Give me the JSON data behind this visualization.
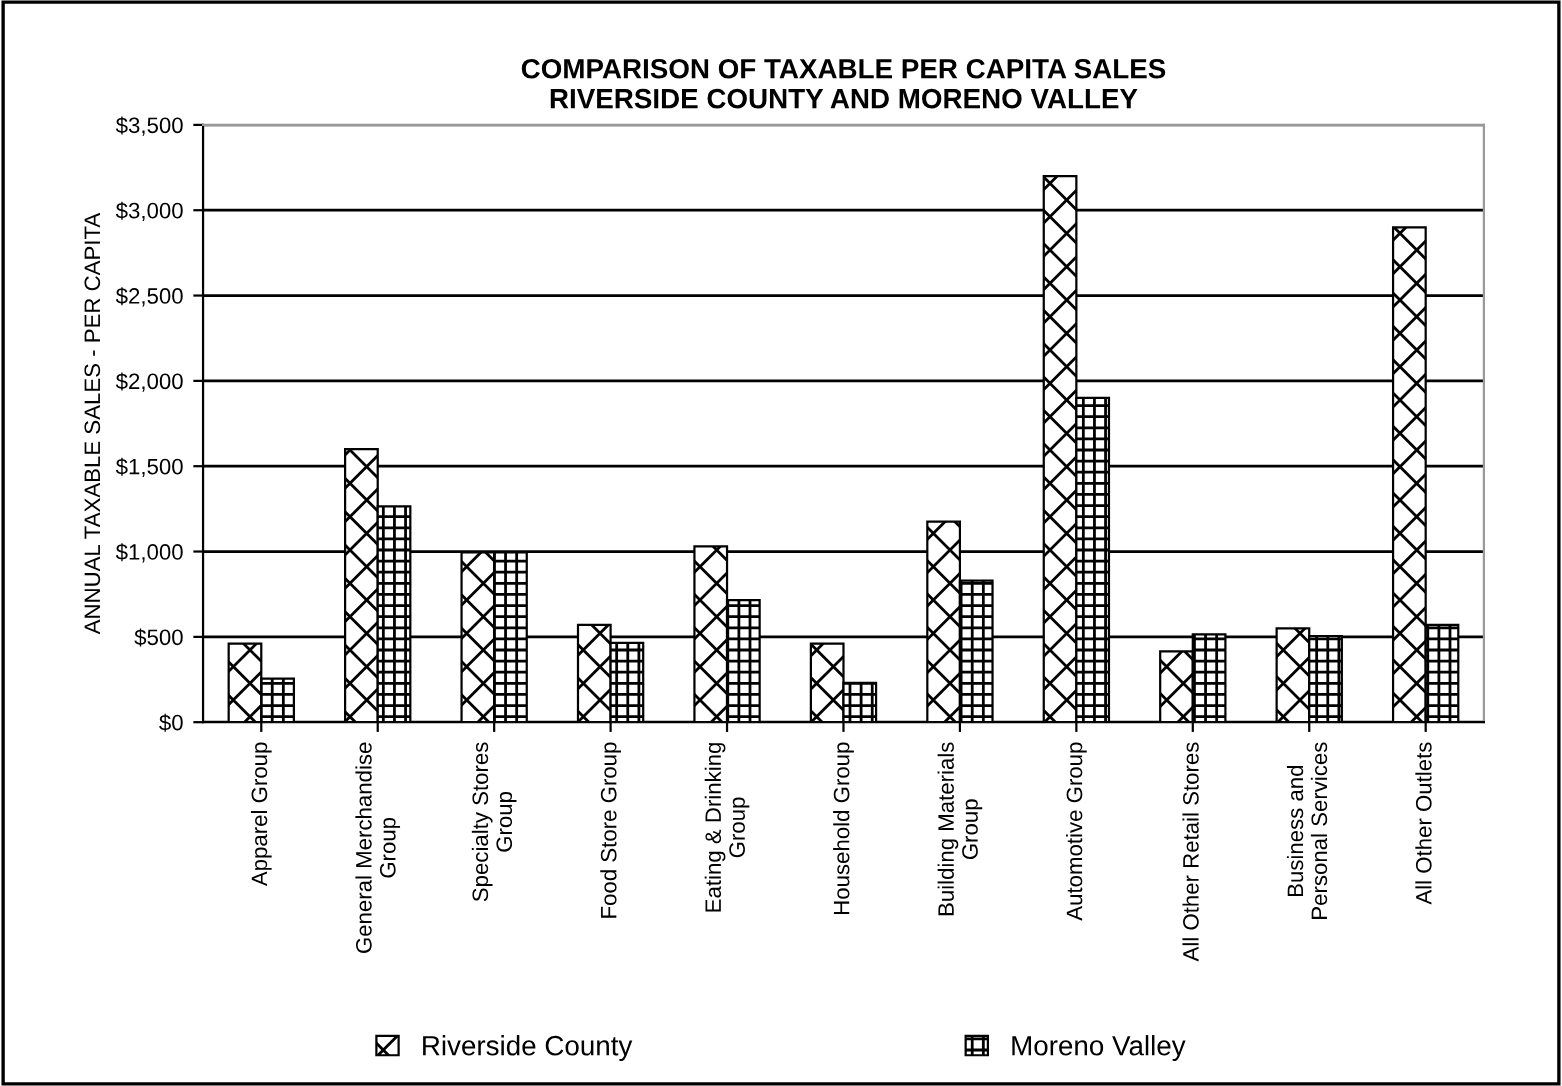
{
  "chart_data": {
    "type": "bar",
    "title": "COMPARISON OF TAXABLE PER CAPITA SALES\nRIVERSIDE COUNTY AND MORENO VALLEY",
    "ylabel": "ANNUAL TAXABLE SALES - PER CAPITA",
    "categories": [
      "Apparel Group",
      "General Merchandise\nGroup",
      "Specialty Stores\nGroup",
      "Food Store Group",
      "Eating & Drinking\nGroup",
      "Household Group",
      "Building Materials\nGroup",
      "Automotive Group",
      "All Other Retail Stores",
      "Business and\nPersonal Services",
      "All Other Outlets"
    ],
    "series": [
      {
        "name": "Riverside County",
        "color": "#000000",
        "values": [
          460,
          1600,
          995,
          570,
          1030,
          460,
          1175,
          3200,
          415,
          550,
          2900
        ]
      },
      {
        "name": "Moreno Valley",
        "color": "#000000",
        "values": [
          255,
          1265,
          995,
          465,
          715,
          230,
          830,
          1900,
          515,
          505,
          570
        ]
      }
    ],
    "ylim": [
      0,
      3500
    ],
    "yticks": [
      {
        "value": 0,
        "label": "$0"
      },
      {
        "value": 500,
        "label": "$500"
      },
      {
        "value": 1000,
        "label": "$1,000"
      },
      {
        "value": 1500,
        "label": "$1,500"
      },
      {
        "value": 2000,
        "label": "$2,000"
      },
      {
        "value": 2500,
        "label": "$2,500"
      },
      {
        "value": 3000,
        "label": "$3,000"
      },
      {
        "value": 3500,
        "label": "$3,500"
      }
    ],
    "grid": "y",
    "legend": "bottom"
  }
}
